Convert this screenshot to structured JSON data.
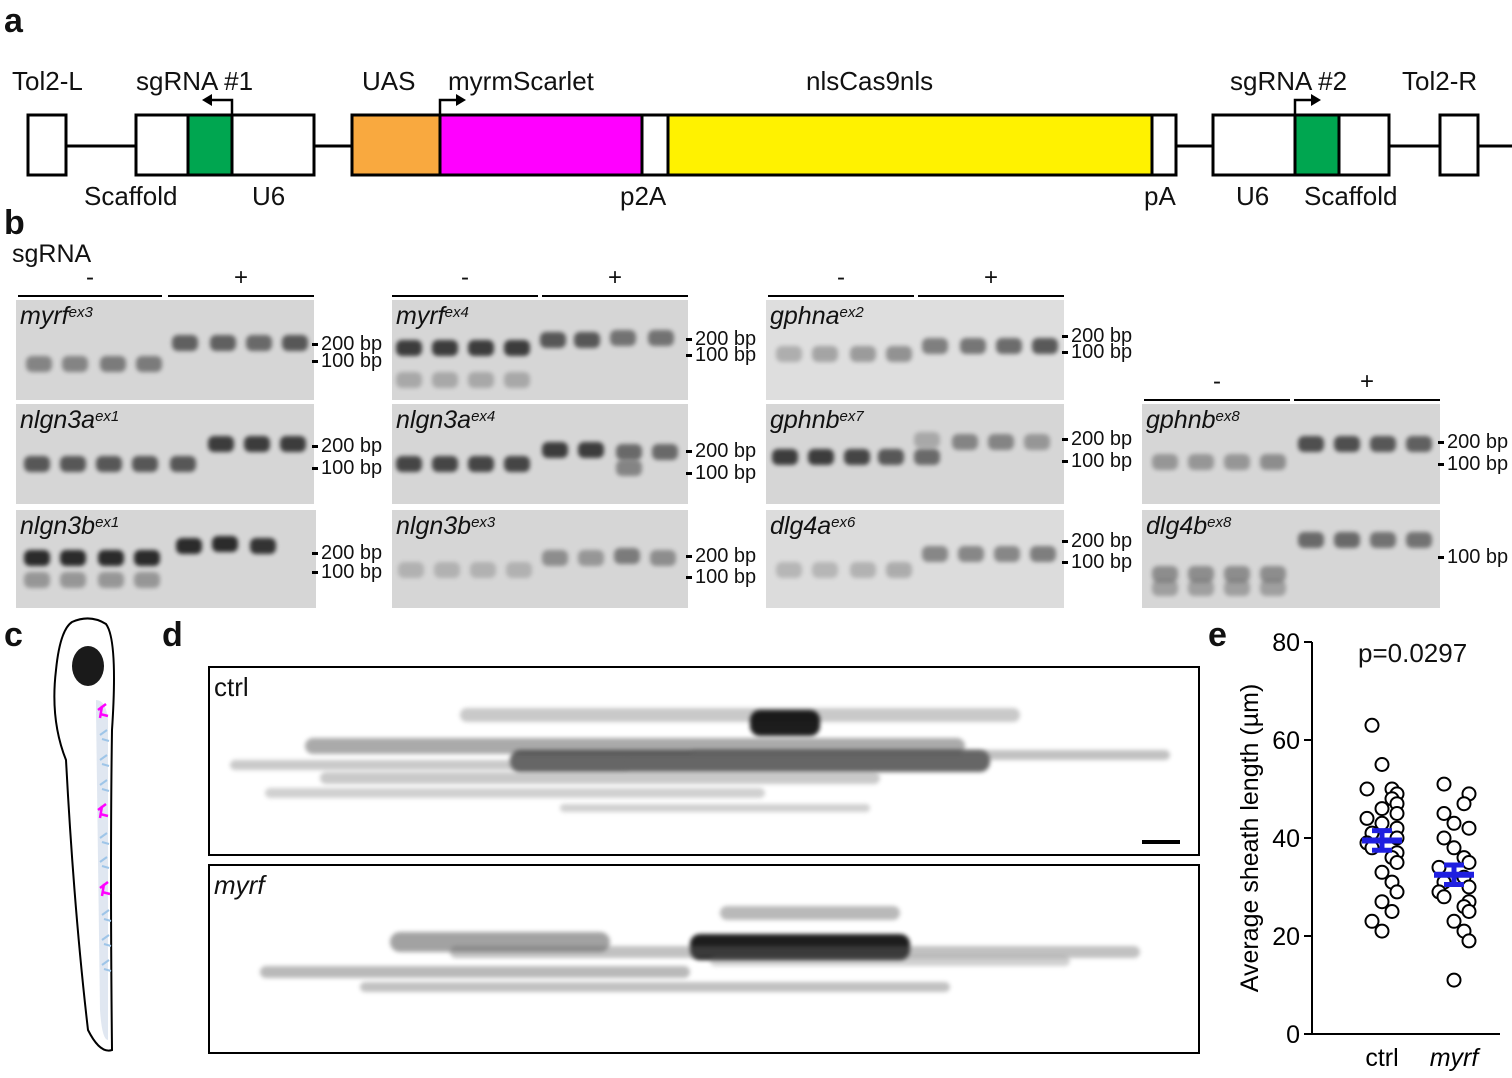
{
  "panels": {
    "a": "a",
    "b": "b",
    "c": "c",
    "d": "d",
    "e": "e"
  },
  "construct": {
    "tol2_left": "Tol2-L",
    "sgrna1": "sgRNA #1",
    "uas": "UAS",
    "myrmscarlet": "myrmScarlet",
    "cas9": "nlsCas9nls",
    "sgrna2": "sgRNA #2",
    "tol2_right": "Tol2-R",
    "scaffold_left": "Scaffold",
    "u6_left": "U6",
    "p2a": "p2A",
    "pa": "pA",
    "u6_right": "U6",
    "scaffold_right": "Scaffold",
    "colors": {
      "uas": "#f9a93f",
      "myrmscarlet": "#ff00ff",
      "cas9": "#fff200",
      "sgrna": "#00a650"
    }
  },
  "gels": {
    "sgrna_label": "sgRNA",
    "minus": "-",
    "plus": "+",
    "bp200": "200 bp",
    "bp100": "100 bp",
    "items": [
      {
        "gene": "myrf",
        "exon": "ex3"
      },
      {
        "gene": "myrf",
        "exon": "ex4"
      },
      {
        "gene": "gphna",
        "exon": "ex2"
      },
      {
        "gene": "nlgn3a",
        "exon": "ex1"
      },
      {
        "gene": "nlgn3a",
        "exon": "ex4"
      },
      {
        "gene": "gphnb",
        "exon": "ex7"
      },
      {
        "gene": "gphnb",
        "exon": "ex8"
      },
      {
        "gene": "nlgn3b",
        "exon": "ex1"
      },
      {
        "gene": "nlgn3b",
        "exon": "ex3"
      },
      {
        "gene": "dlg4a",
        "exon": "ex6"
      },
      {
        "gene": "dlg4b",
        "exon": "ex8"
      }
    ]
  },
  "micro": {
    "ctrl": "ctrl",
    "myrf": "myrf"
  },
  "chart_data": {
    "type": "scatter",
    "ylabel": "Average sheath length (µm)",
    "annotation": "p=0.0297",
    "ylim": [
      0,
      80
    ],
    "yticks": [
      "0",
      "20",
      "40",
      "60",
      "80"
    ],
    "categories": [
      "ctrl",
      "myrf"
    ],
    "series": [
      {
        "values": [
          63,
          55,
          50,
          49,
          50,
          48,
          47,
          46,
          45,
          44,
          43,
          42,
          41,
          40,
          39,
          38,
          37,
          36,
          35,
          33,
          31,
          29,
          27,
          25,
          23,
          21
        ],
        "mean": 39.5,
        "sem": 2.0
      },
      {
        "values": [
          51,
          49,
          47,
          45,
          43,
          42,
          40,
          38,
          36,
          35,
          34,
          32,
          31,
          30,
          29,
          28,
          27,
          26,
          25,
          23,
          21,
          19,
          11
        ],
        "mean": 32.5,
        "sem": 2.0
      }
    ],
    "mean_color": "#1f1fe0"
  }
}
